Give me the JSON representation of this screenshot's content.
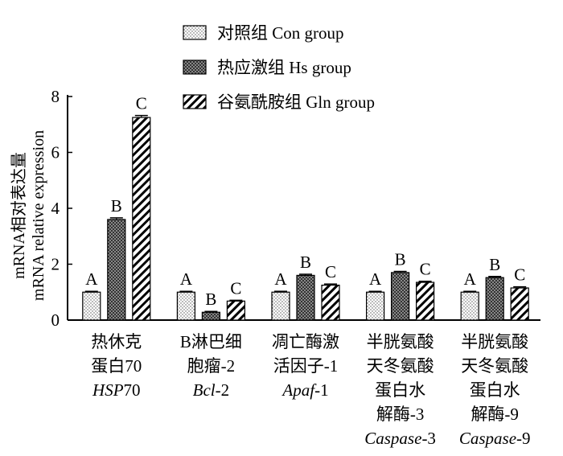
{
  "chart_data": {
    "type": "bar",
    "title": "",
    "xlabel": "",
    "ylabel_cn": "mRNA相对表达量",
    "ylabel_en": "mRNA relative expression",
    "ylim": [
      0,
      8
    ],
    "yticks": [
      0,
      2,
      4,
      6,
      8
    ],
    "legend_position": "top",
    "series": [
      {
        "name": "对照组 Con group",
        "pattern": "dots",
        "values": [
          1.0,
          1.0,
          1.0,
          1.0,
          1.0
        ],
        "error": [
          0.03,
          0.03,
          0.03,
          0.03,
          0.03
        ],
        "labels": [
          "A",
          "A",
          "A",
          "A",
          "A"
        ]
      },
      {
        "name": "热应激组 Hs group",
        "pattern": "crosshatch",
        "values": [
          3.6,
          0.28,
          1.6,
          1.7,
          1.52
        ],
        "error": [
          0.06,
          0.03,
          0.04,
          0.04,
          0.04
        ],
        "labels": [
          "B",
          "B",
          "B",
          "B",
          "B"
        ]
      },
      {
        "name": "谷氨酰胺组 Gln group",
        "pattern": "diagonal",
        "values": [
          7.25,
          0.68,
          1.25,
          1.35,
          1.15
        ],
        "error": [
          0.07,
          0.03,
          0.04,
          0.04,
          0.04
        ],
        "labels": [
          "C",
          "C",
          "C",
          "C",
          "C"
        ]
      }
    ],
    "categories": [
      {
        "cn": [
          "热休克",
          "蛋白70"
        ],
        "en_italic": "HSP",
        "en_normal": "70"
      },
      {
        "cn": [
          "B淋巴细",
          "胞瘤-2"
        ],
        "en_italic": "Bcl",
        "en_normal": "-2"
      },
      {
        "cn": [
          "凋亡酶激",
          "活因子-1"
        ],
        "en_italic": "Apaf",
        "en_normal": "-1"
      },
      {
        "cn": [
          "半胱氨酸",
          "天冬氨酸",
          "蛋白水",
          "解酶-3"
        ],
        "en_italic": "Caspase",
        "en_normal": "-3"
      },
      {
        "cn": [
          "半胱氨酸",
          "天冬氨酸",
          "蛋白水",
          "解酶-9"
        ],
        "en_italic": "Caspase",
        "en_normal": "-9"
      }
    ]
  }
}
